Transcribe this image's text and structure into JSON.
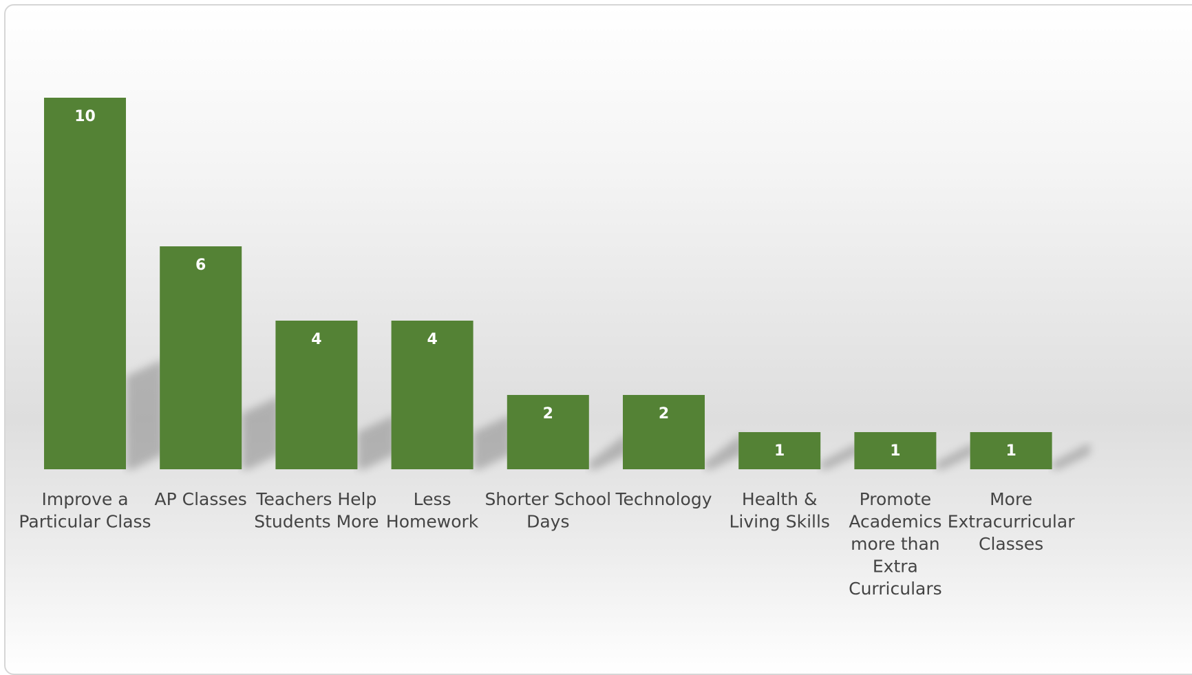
{
  "chart_data": {
    "type": "bar",
    "title": "",
    "xlabel": "",
    "ylabel": "",
    "categories": [
      "Improve a Particular Class",
      "AP Classes",
      "Teachers Help Students More",
      "Less Homework",
      "Shorter School Days",
      "Technology",
      "Health & Living Skills",
      "Promote Academics more than Extra Curriculars",
      "More Extracurricular Classes"
    ],
    "category_label_lines": [
      [
        "Improve a",
        "Particular Class"
      ],
      [
        "AP Classes"
      ],
      [
        "Teachers Help",
        "Students More"
      ],
      [
        "Less",
        "Homework"
      ],
      [
        "Shorter School",
        "Days"
      ],
      [
        "Technology"
      ],
      [
        "Health &",
        "Living Skills"
      ],
      [
        "Promote",
        "Academics",
        "more than",
        "Extra",
        "Curriculars"
      ],
      [
        "More",
        "Extracurricular",
        "Classes"
      ]
    ],
    "values": [
      10,
      6,
      4,
      4,
      2,
      2,
      1,
      1,
      1
    ],
    "data_labels": [
      "10",
      "6",
      "4",
      "4",
      "2",
      "2",
      "1",
      "1",
      "1"
    ],
    "ylim": [
      0,
      12
    ],
    "grid": false,
    "legend": "none",
    "bar_color": "#548235",
    "label_color": "#ffffff",
    "axis_text_color": "#444444"
  }
}
